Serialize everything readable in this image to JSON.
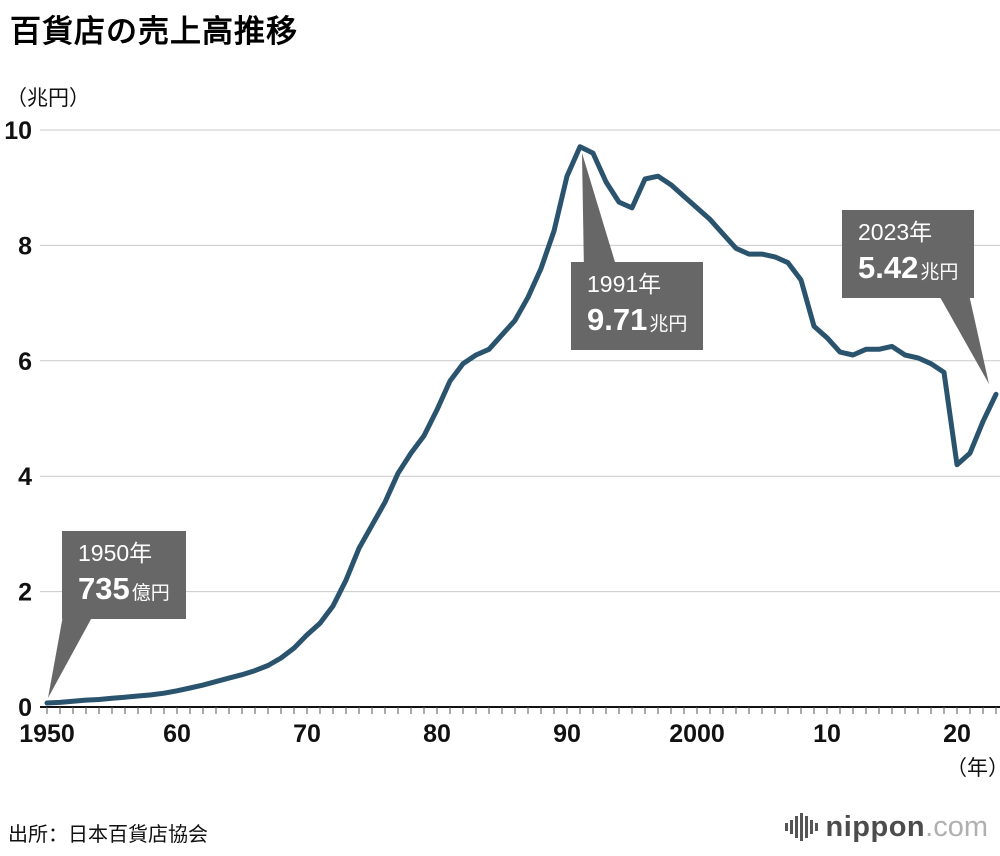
{
  "title": "百貨店の売上高推移",
  "y_axis_unit": "（兆円）",
  "x_axis_unit": "（年）",
  "source": "出所：日本百貨店協会",
  "logo": {
    "name": "nippon",
    "domain": ".com"
  },
  "colors": {
    "line": "#2a536e",
    "annotation_bg": "#676767",
    "gridline": "#c9c9c9",
    "axis": "#111111"
  },
  "annotations": [
    {
      "id": "1950",
      "line1": "1950年",
      "value": "735",
      "unit": "億円"
    },
    {
      "id": "1991",
      "line1": "1991年",
      "value": "9.71",
      "unit": "兆円"
    },
    {
      "id": "2023",
      "line1": "2023年",
      "value": "5.42",
      "unit": "兆円"
    }
  ],
  "chart_data": {
    "type": "line",
    "title": "百貨店の売上高推移",
    "ylabel": "兆円",
    "xlabel": "年",
    "ylim": [
      0,
      10
    ],
    "xlim": [
      1950,
      2023
    ],
    "grid": true,
    "y_ticks": [
      0,
      2,
      4,
      6,
      8,
      10
    ],
    "x_ticks": [
      {
        "year": 1950,
        "label": "1950"
      },
      {
        "year": 1960,
        "label": "60"
      },
      {
        "year": 1970,
        "label": "70"
      },
      {
        "year": 1980,
        "label": "80"
      },
      {
        "year": 1990,
        "label": "90"
      },
      {
        "year": 2000,
        "label": "2000"
      },
      {
        "year": 2010,
        "label": "10"
      },
      {
        "year": 2020,
        "label": "20"
      }
    ],
    "series": [
      {
        "name": "百貨店売上高（兆円）",
        "color": "#2a536e",
        "x_start": 1950,
        "x_step": 1,
        "values": [
          0.07,
          0.08,
          0.1,
          0.12,
          0.13,
          0.15,
          0.17,
          0.19,
          0.21,
          0.24,
          0.28,
          0.33,
          0.38,
          0.44,
          0.5,
          0.56,
          0.63,
          0.72,
          0.85,
          1.02,
          1.25,
          1.45,
          1.75,
          2.2,
          2.75,
          3.15,
          3.55,
          4.05,
          4.4,
          4.7,
          5.15,
          5.65,
          5.95,
          6.1,
          6.2,
          6.45,
          6.7,
          7.1,
          7.6,
          8.25,
          9.2,
          9.71,
          9.6,
          9.1,
          8.75,
          8.65,
          9.15,
          9.2,
          9.05,
          8.85,
          8.65,
          8.45,
          8.2,
          7.95,
          7.85,
          7.85,
          7.8,
          7.7,
          7.4,
          6.6,
          6.4,
          6.15,
          6.1,
          6.2,
          6.2,
          6.25,
          6.1,
          6.05,
          5.95,
          5.8,
          4.2,
          4.4,
          4.95,
          5.42
        ]
      }
    ],
    "annotated_points": [
      {
        "year": 1950,
        "value": 0.0735,
        "label": "1950年 735億円"
      },
      {
        "year": 1991,
        "value": 9.71,
        "label": "1991年 9.71兆円"
      },
      {
        "year": 2023,
        "value": 5.42,
        "label": "2023年 5.42兆円"
      }
    ]
  }
}
